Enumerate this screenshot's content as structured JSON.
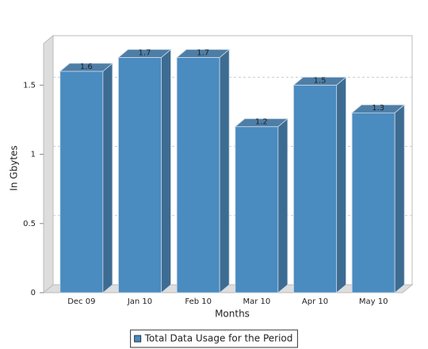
{
  "chart_data": {
    "type": "bar3d",
    "x_label": "Months",
    "y_label": "In Gbytes",
    "categories": [
      "Dec 09",
      "Jan 10",
      "Feb 10",
      "Mar 10",
      "Apr 10",
      "May 10"
    ],
    "series": [
      {
        "name": "Total Data Usage for the Period",
        "color": "#4a8bc0",
        "values": [
          1.6,
          1.7,
          1.7,
          1.2,
          1.5,
          1.3
        ]
      }
    ],
    "ylim": [
      0,
      1.8
    ],
    "yticks": [
      0,
      0.5,
      1,
      1.5
    ],
    "grid": true,
    "legend": "bottom",
    "data_labels": true
  }
}
